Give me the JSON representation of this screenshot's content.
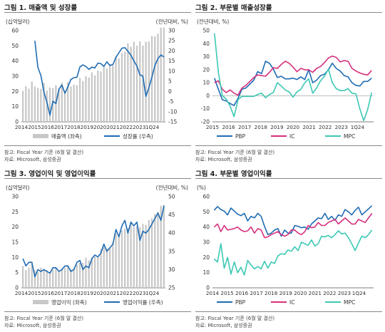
{
  "charts": [
    {
      "title": "그림 1. 매출액 및 성장률",
      "note": "참고: Fiscal Year 기준 (6월 말 결산)",
      "source": "자료: Microsoft, 삼성증권",
      "chart_data": {
        "type": "bar",
        "left_unit": "(십억달러)",
        "right_unit": "(전년대비, %)",
        "ylim": [
          0,
          60
        ],
        "yticks": [
          0,
          10,
          20,
          30,
          40,
          50,
          60
        ],
        "y2lim": [
          -15,
          30
        ],
        "y2ticks": [
          -15,
          -10,
          -5,
          0,
          5,
          10,
          15,
          20,
          25,
          30
        ],
        "xlabels": [
          "2014",
          "2015",
          "2016",
          "2017",
          "2018",
          "2019",
          "2020",
          "2021",
          "2022",
          "2023",
          "1Q24"
        ],
        "start_year": 2014,
        "series": [
          {
            "name": "매출액 (좌축)",
            "kind": "bar",
            "axis": "left",
            "color": "#c8c8c8",
            "values": [
              20.4,
              23.4,
              21.8,
              26.5,
              23.2,
              22.2,
              21.7,
              25.6,
              20.5,
              22.6,
              22.1,
              24.1,
              21.9,
              25.7,
              20.6,
              26.1,
              23.3,
              24.5,
              24.1,
              28.9,
              26.8,
              30.1,
              29.1,
              32.5,
              30.6,
              33.7,
              33.1,
              36.9,
              35.0,
              38.0,
              37.2,
              43.1,
              41.7,
              45.3,
              46.2,
              51.7,
              49.4,
              52.7,
              50.1,
              52.9,
              50.2,
              52.7,
              52.9,
              56.5,
              56.2,
              58.0,
              62.0,
              61.9
            ]
          },
          {
            "name": "성장률 (우측)",
            "kind": "line",
            "axis": "right",
            "color": "#1f6cb4",
            "values": [
              null,
              null,
              null,
              null,
              25.0,
              11.9,
              7.8,
              -0.3,
              -5.3,
              -11.7,
              -4.8,
              -6.0,
              1.0,
              3.2,
              -0.9,
              2.2,
              5.9,
              6.8,
              7.0,
              12.1,
              13.1,
              12.3,
              10.9,
              12.0,
              11.6,
              14.0,
              13.7,
              12.4,
              14.6,
              12.8,
              13.3,
              16.8,
              19.1,
              21.3,
              21.6,
              19.8,
              17.9,
              15.0,
              12.6,
              8.2,
              7.5,
              -2.4,
              1.9,
              7.1,
              12.8,
              16.2,
              18.0,
              17.0
            ]
          }
        ]
      }
    },
    {
      "title": "그림 2. 부문별 매출성장률",
      "note": "참고: Fiscal Year 기준 (6월 말 결산)",
      "source": "자료: Microsoft, 삼성증권",
      "chart_data": {
        "type": "line",
        "left_unit": "(전년대비, %)",
        "ylim": [
          -20,
          50
        ],
        "yticks": [
          -20,
          -10,
          0,
          10,
          20,
          30,
          40,
          50
        ],
        "xlabels": [
          "2015",
          "2016",
          "2017",
          "2018",
          "2019",
          "2020",
          "2021",
          "2022",
          "2023",
          "1Q24"
        ],
        "start_year": 2015,
        "series": [
          {
            "name": "PBP",
            "color": "#1f6cb4",
            "values": [
              13.5,
              5.0,
              -3.0,
              -4.0,
              -6.0,
              -7.5,
              -2.0,
              5.0,
              6.0,
              9.0,
              12.0,
              18.5,
              17.0,
              26.5,
              25.0,
              20.5,
              14.0,
              15.0,
              13.0,
              13.0,
              13.5,
              12.5,
              14.5,
              12.5,
              20.0,
              10.0,
              12.0,
              15.5,
              16.5,
              20.0,
              25.0,
              21.0,
              19.0,
              15.5,
              14.5,
              10.0,
              8.0,
              7.5,
              11.0,
              11.0,
              13.5
            ]
          },
          {
            "name": "IC",
            "color": "#d6307c",
            "values": [
              10.0,
              11.5,
              5.0,
              2.5,
              4.5,
              2.0,
              0.5,
              6.0,
              8.0,
              11.0,
              14.0,
              16.0,
              15.5,
              15.0,
              18.0,
              21.5,
              21.0,
              24.0,
              26.5,
              25.0,
              22.0,
              18.5,
              21.0,
              20.0,
              20.0,
              18.0,
              21.0,
              22.5,
              25.5,
              29.0,
              30.5,
              29.5,
              26.0,
              27.0,
              26.5,
              21.0,
              19.0,
              17.5,
              16.5,
              16.0,
              19.5
            ]
          },
          {
            "name": "MPC",
            "color": "#3cc8b4",
            "values": [
              48.0,
              18.0,
              0.0,
              -2.5,
              -8.0,
              -16.0,
              -3.0,
              -0.5,
              -0.5,
              -0.5,
              -0.5,
              1.0,
              2.0,
              -1.5,
              1.0,
              2.5,
              10.0,
              7.5,
              4.5,
              3.0,
              -1.0,
              3.0,
              5.0,
              10.0,
              13.0,
              2.0,
              6.0,
              11.5,
              15.0,
              20.5,
              10.0,
              5.5,
              4.0,
              4.0,
              5.5,
              2.0,
              1.5,
              -10.0,
              -19.0,
              -10.5,
              2.5
            ]
          }
        ]
      }
    },
    {
      "title": "그림 3. 영업이익 및 영업이익률",
      "note": "참고: Fiscal Year 기준 (6월 말 결산)",
      "source": "자료: Microsoft, 삼성증권",
      "chart_data": {
        "type": "bar",
        "left_unit": "(십억달러)",
        "right_unit": "(전년대비, %)",
        "ylim": [
          0,
          30
        ],
        "yticks": [
          0,
          5,
          10,
          15,
          20,
          25,
          30
        ],
        "y2lim": [
          25,
          50
        ],
        "y2ticks": [
          25,
          30,
          35,
          40,
          45,
          50
        ],
        "xlabels": [
          "2014",
          "2015",
          "2016",
          "2017",
          "2018",
          "2019",
          "2020",
          "2021",
          "2022",
          "2023",
          "1Q24"
        ],
        "start_year": 2014,
        "series": [
          {
            "name": "영업이익 (좌축)",
            "kind": "bar",
            "axis": "left",
            "color": "#c8c8c8",
            "values": [
              7.2,
              5.8,
              6.6,
              7.7,
              5.8,
              5.2,
              6.6,
              6.0,
              5.8,
              5.2,
              6.0,
              6.5,
              5.3,
              6.2,
              6.7,
              7.3,
              6.1,
              6.5,
              7.7,
              8.3,
              8.2,
              9.9,
              9.0,
              10.0,
              10.3,
              10.1,
              12.8,
              13.4,
              12.9,
              13.1,
              15.0,
              17.9,
              17.0,
              18.9,
              19.4,
              19.6,
              21.7,
              20.0,
              20.3,
              20.0,
              21.0,
              20.7,
              22.3,
              22.9,
              24.3,
              25.0,
              27.0,
              27.3
            ]
          },
          {
            "name": "영업이익률 (우측)",
            "kind": "line",
            "axis": "right",
            "color": "#1f6cb4",
            "values": [
              33.0,
              31.0,
              32.0,
              32.0,
              28.0,
              30.0,
              29.5,
              30.0,
              29.5,
              29.0,
              30.5,
              30.5,
              29.5,
              30.0,
              31.0,
              31.0,
              29.5,
              30.0,
              32.0,
              32.5,
              30.0,
              31.0,
              30.5,
              33.0,
              34.0,
              33.5,
              34.5,
              37.0,
              35.0,
              36.0,
              37.0,
              41.0,
              39.0,
              42.0,
              43.5,
              40.0,
              43.0,
              42.0,
              43.0,
              38.0,
              40.5,
              40.0,
              41.0,
              42.5,
              44.0,
              45.5,
              43.5,
              47.5
            ]
          }
        ]
      }
    },
    {
      "title": "그림 4. 부문별 영업이익률",
      "note": "참고: Fiscal Year 기준 (6월 말 결산)",
      "source": "자료: Microsoft, 삼성증권",
      "chart_data": {
        "type": "line",
        "left_unit": "(%)",
        "ylim": [
          0,
          60
        ],
        "yticks": [
          0,
          10,
          20,
          30,
          40,
          50,
          60
        ],
        "xlabels": [
          "2014",
          "2015",
          "2016",
          "2017",
          "2018",
          "2019",
          "2020",
          "2021",
          "2022",
          "2023",
          "1Q24"
        ],
        "start_year": 2014,
        "series": [
          {
            "name": "PBP",
            "color": "#1f6cb4",
            "values": [
              51.0,
              53.5,
              51.5,
              50.5,
              48.0,
              52.5,
              50.5,
              48.5,
              47.5,
              49.0,
              44.0,
              47.0,
              46.0,
              49.0,
              47.0,
              40.5,
              35.0,
              36.0,
              38.0,
              39.0,
              34.0,
              38.0,
              36.0,
              36.0,
              41.0,
              40.5,
              39.5,
              40.0,
              38.5,
              42.0,
              44.0,
              46.0,
              45.5,
              49.0,
              45.0,
              47.0,
              44.5,
              48.0,
              47.0,
              51.5,
              50.0,
              48.0,
              51.0,
              53.0,
              48.0,
              50.0,
              52.0,
              54.0
            ]
          },
          {
            "name": "IC",
            "color": "#d6307c",
            "values": [
              40.0,
              42.0,
              37.0,
              41.0,
              38.0,
              38.5,
              39.0,
              40.0,
              38.0,
              37.0,
              37.5,
              40.0,
              36.0,
              39.0,
              38.0,
              33.0,
              33.5,
              35.0,
              36.0,
              37.0,
              35.0,
              34.0,
              35.0,
              38.0,
              38.0,
              36.0,
              35.0,
              37.0,
              41.0,
              39.5,
              40.0,
              43.0,
              41.0,
              41.0,
              43.0,
              44.0,
              45.0,
              42.0,
              44.0,
              46.0,
              44.0,
              42.0,
              42.0,
              45.0,
              44.0,
              43.0,
              46.0,
              49.0
            ]
          },
          {
            "name": "MPC",
            "color": "#3cc8b4",
            "values": [
              19.0,
              17.0,
              29.0,
              13.0,
              20.0,
              9.0,
              17.0,
              10.0,
              13.5,
              8.5,
              18.0,
              15.0,
              12.5,
              14.0,
              12.5,
              17.5,
              13.0,
              17.0,
              16.0,
              21.0,
              22.5,
              22.0,
              25.0,
              24.0,
              27.0,
              24.5,
              30.0,
              29.0,
              28.0,
              31.5,
              27.5,
              29.0,
              34.0,
              33.5,
              34.5,
              33.0,
              35.0,
              37.5,
              35.5,
              36.0,
              33.0,
              29.0,
              24.5,
              29.5,
              34.0,
              33.0,
              35.0,
              38.0
            ]
          }
        ]
      }
    }
  ]
}
